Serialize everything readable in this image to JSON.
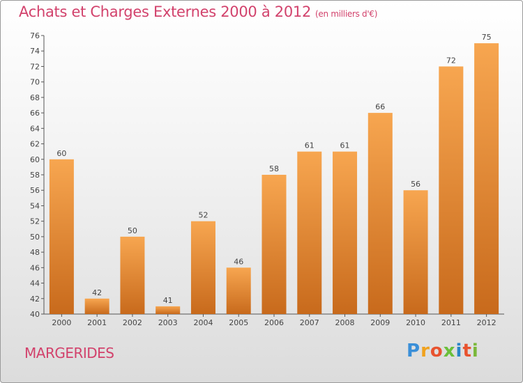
{
  "header": {
    "title": "Achats et Charges Externes 2000 à 2012",
    "subtitle": "(en milliers d'€)"
  },
  "footer": {
    "commune": "MARGERIDES",
    "logo": {
      "letters": [
        "P",
        "r",
        "o",
        "x",
        "i",
        "t",
        "i"
      ],
      "colors": [
        "#3a8fd8",
        "#f0a21e",
        "#e8532f",
        "#6bbf3a",
        "#2a86c8",
        "#e8532f",
        "#7ab83a"
      ]
    }
  },
  "chart_data": {
    "type": "bar",
    "categories": [
      "2000",
      "2001",
      "2002",
      "2003",
      "2004",
      "2005",
      "2006",
      "2007",
      "2008",
      "2009",
      "2010",
      "2011",
      "2012"
    ],
    "values": [
      60,
      42,
      50,
      41,
      52,
      46,
      58,
      61,
      61,
      66,
      56,
      72,
      75
    ],
    "ylim": [
      40,
      76
    ],
    "yticks": [
      40,
      42,
      44,
      46,
      48,
      50,
      52,
      54,
      56,
      58,
      60,
      62,
      64,
      66,
      68,
      70,
      72,
      74,
      76
    ],
    "grid": false,
    "bar_color_top": "#f7a650",
    "bar_color_bottom": "#c86a1c",
    "text_color": "#444444"
  }
}
